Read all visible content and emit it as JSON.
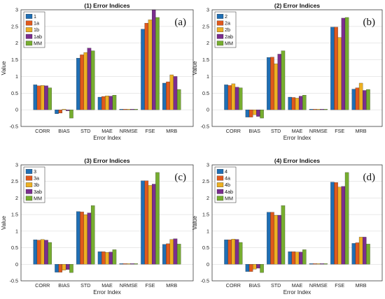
{
  "colors": [
    "#1f6fb5",
    "#e0581c",
    "#edb022",
    "#7b2d8e",
    "#76ad2f"
  ],
  "chart_data": [
    {
      "type": "bar",
      "title": "(1) Error Indices",
      "tag": "(a)",
      "xlabel": "Error Index",
      "ylabel": "Value",
      "ylim": [
        -0.5,
        3
      ],
      "yticks": [
        "-0.5",
        "0",
        "0.5",
        "1",
        "1.5",
        "2",
        "2.5",
        "3"
      ],
      "categories": [
        "CORR",
        "BIAS",
        "STD",
        "MAE",
        "NRMSE",
        "FSE",
        "MRB"
      ],
      "legend_position": "top-left",
      "grid": true,
      "series": [
        {
          "name": "1",
          "values": [
            0.75,
            -0.12,
            1.55,
            0.38,
            0.02,
            2.42,
            0.8
          ]
        },
        {
          "name": "1a",
          "values": [
            0.72,
            -0.1,
            1.65,
            0.4,
            0.02,
            2.6,
            0.84
          ]
        },
        {
          "name": "1b",
          "values": [
            0.73,
            0.02,
            1.72,
            0.42,
            0.02,
            2.7,
            1.05
          ]
        },
        {
          "name": "1ab",
          "values": [
            0.72,
            -0.03,
            1.85,
            0.41,
            0.02,
            3.0,
            1.0
          ]
        },
        {
          "name": "MM",
          "values": [
            0.66,
            -0.25,
            1.77,
            0.44,
            0.02,
            2.77,
            0.61
          ]
        }
      ]
    },
    {
      "type": "bar",
      "title": "(2) Error Indices",
      "tag": "(b)",
      "xlabel": "Error Index",
      "ylabel": "Value",
      "ylim": [
        -0.5,
        3
      ],
      "yticks": [
        "-0.5",
        "0",
        "0.5",
        "1",
        "1.5",
        "2",
        "2.5",
        "3"
      ],
      "categories": [
        "CORR",
        "BIAS",
        "STD",
        "MAE",
        "NRMSE",
        "FSE",
        "MRB"
      ],
      "legend_position": "top-left",
      "grid": true,
      "series": [
        {
          "name": "2",
          "values": [
            0.75,
            -0.22,
            1.57,
            0.38,
            0.02,
            2.48,
            0.62
          ]
        },
        {
          "name": "2a",
          "values": [
            0.73,
            -0.22,
            1.58,
            0.37,
            0.02,
            2.48,
            0.66
          ]
        },
        {
          "name": "2b",
          "values": [
            0.78,
            -0.15,
            1.38,
            0.35,
            0.02,
            2.17,
            0.8
          ]
        },
        {
          "name": "2ab",
          "values": [
            0.68,
            -0.2,
            1.67,
            0.41,
            0.02,
            2.75,
            0.58
          ]
        },
        {
          "name": "MM",
          "values": [
            0.66,
            -0.25,
            1.77,
            0.44,
            0.02,
            2.77,
            0.61
          ]
        }
      ]
    },
    {
      "type": "bar",
      "title": "(3) Error Indices",
      "tag": "(c)",
      "xlabel": "Error Index",
      "ylabel": "Value",
      "ylim": [
        -0.5,
        3
      ],
      "yticks": [
        "-0.5",
        "0",
        "0.5",
        "1",
        "1.5",
        "2",
        "2.5",
        "3"
      ],
      "categories": [
        "CORR",
        "BIAS",
        "STD",
        "MAE",
        "NRMSE",
        "FSE",
        "MRB"
      ],
      "legend_position": "top-left",
      "grid": true,
      "series": [
        {
          "name": "3",
          "values": [
            0.74,
            -0.24,
            1.59,
            0.38,
            0.02,
            2.52,
            0.6
          ]
        },
        {
          "name": "3a",
          "values": [
            0.73,
            -0.24,
            1.58,
            0.38,
            0.02,
            2.52,
            0.62
          ]
        },
        {
          "name": "3b",
          "values": [
            0.75,
            -0.18,
            1.5,
            0.36,
            0.02,
            2.38,
            0.75
          ]
        },
        {
          "name": "3ab",
          "values": [
            0.73,
            -0.16,
            1.55,
            0.37,
            0.02,
            2.42,
            0.77
          ]
        },
        {
          "name": "MM",
          "values": [
            0.66,
            -0.25,
            1.77,
            0.44,
            0.02,
            2.77,
            0.61
          ]
        }
      ]
    },
    {
      "type": "bar",
      "title": "(4) Error Indices",
      "tag": "(d)",
      "xlabel": "Error Index",
      "ylabel": "Value",
      "ylim": [
        -0.5,
        3
      ],
      "yticks": [
        "-0.5",
        "0",
        "0.5",
        "1",
        "1.5",
        "2",
        "2.5",
        "3"
      ],
      "categories": [
        "CORR",
        "BIAS",
        "STD",
        "MAE",
        "NRMSE",
        "FSE",
        "MRB"
      ],
      "legend_position": "top-left",
      "grid": true,
      "series": [
        {
          "name": "4",
          "values": [
            0.74,
            -0.22,
            1.57,
            0.38,
            0.02,
            2.48,
            0.63
          ]
        },
        {
          "name": "4a",
          "values": [
            0.74,
            -0.22,
            1.57,
            0.38,
            0.02,
            2.47,
            0.65
          ]
        },
        {
          "name": "4b",
          "values": [
            0.76,
            -0.15,
            1.48,
            0.37,
            0.02,
            2.33,
            0.82
          ]
        },
        {
          "name": "4ab",
          "values": [
            0.75,
            -0.12,
            1.48,
            0.37,
            0.02,
            2.35,
            0.82
          ]
        },
        {
          "name": "MM",
          "values": [
            0.66,
            -0.25,
            1.77,
            0.44,
            0.02,
            2.77,
            0.61
          ]
        }
      ]
    }
  ]
}
